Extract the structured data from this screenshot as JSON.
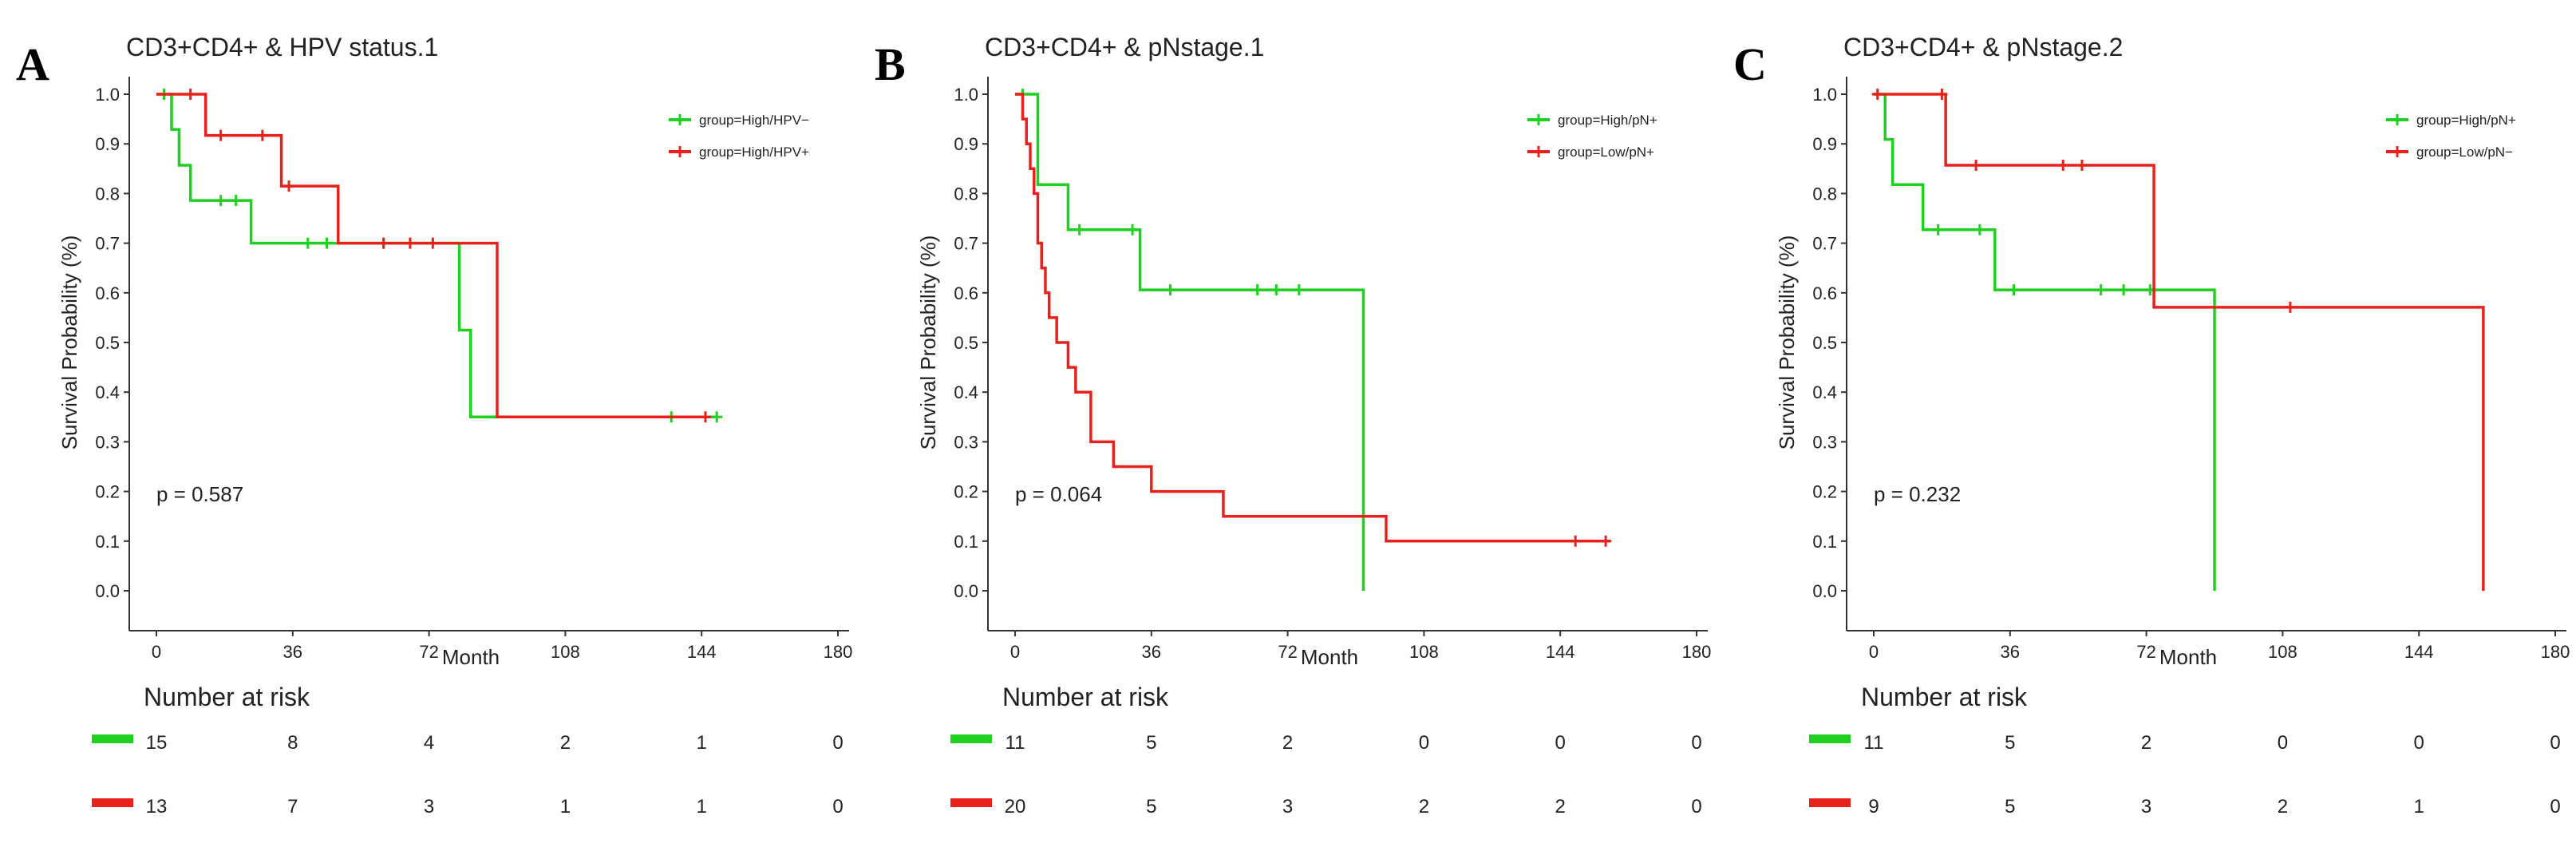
{
  "chart_data": [
    {
      "type": "line",
      "panel_letter": "A",
      "title": "CD3+CD4+ & HPV status.1",
      "xlabel": "Month",
      "ylabel": "Survival Probability (%)",
      "xlim": [
        0,
        180
      ],
      "ylim": [
        0,
        1
      ],
      "x_ticks": [
        0,
        36,
        72,
        108,
        144,
        180
      ],
      "y_ticks": [
        0.0,
        0.1,
        0.2,
        0.3,
        0.4,
        0.5,
        0.6,
        0.7,
        0.8,
        0.9,
        1.0
      ],
      "p_value_text": "p = 0.587",
      "risk_table_title": "Number at risk",
      "legend_position": "top-right",
      "series": [
        {
          "name": "group=High/HPV−",
          "color": "#1fd11f",
          "steps": [
            [
              0,
              1.0
            ],
            [
              4,
              0.929
            ],
            [
              6,
              0.857
            ],
            [
              9,
              0.786
            ],
            [
              25,
              0.7
            ],
            [
              80,
              0.525
            ],
            [
              83,
              0.35
            ],
            [
              148,
              0.35
            ]
          ],
          "censored": [
            [
              2,
              1.0
            ],
            [
              17,
              0.786
            ],
            [
              21,
              0.786
            ],
            [
              40,
              0.7
            ],
            [
              45,
              0.7
            ],
            [
              60,
              0.7
            ],
            [
              136,
              0.35
            ],
            [
              148,
              0.35
            ]
          ],
          "at_risk": [
            15,
            8,
            4,
            2,
            1,
            0
          ]
        },
        {
          "name": "group=High/HPV+",
          "color": "#e8211b",
          "steps": [
            [
              0,
              1.0
            ],
            [
              13,
              0.917
            ],
            [
              33,
              0.815
            ],
            [
              48,
              0.7
            ],
            [
              90,
              0.35
            ],
            [
              145,
              0.35
            ]
          ],
          "censored": [
            [
              9,
              1.0
            ],
            [
              17,
              0.917
            ],
            [
              28,
              0.917
            ],
            [
              35,
              0.815
            ],
            [
              60,
              0.7
            ],
            [
              67,
              0.7
            ],
            [
              73,
              0.7
            ],
            [
              145,
              0.35
            ]
          ],
          "at_risk": [
            13,
            7,
            3,
            1,
            1,
            0
          ]
        }
      ]
    },
    {
      "type": "line",
      "panel_letter": "B",
      "title": "CD3+CD4+ & pNstage.1",
      "xlabel": "Month",
      "ylabel": "Survival Probability (%)",
      "xlim": [
        0,
        180
      ],
      "ylim": [
        0,
        1
      ],
      "x_ticks": [
        0,
        36,
        72,
        108,
        144,
        180
      ],
      "y_ticks": [
        0.0,
        0.1,
        0.2,
        0.3,
        0.4,
        0.5,
        0.6,
        0.7,
        0.8,
        0.9,
        1.0
      ],
      "p_value_text": "p = 0.064",
      "risk_table_title": "Number at risk",
      "legend_position": "top-right",
      "series": [
        {
          "name": "group=High/pN+",
          "color": "#1fd11f",
          "steps": [
            [
              0,
              1.0
            ],
            [
              6,
              0.818
            ],
            [
              14,
              0.727
            ],
            [
              33,
              0.606
            ],
            [
              92,
              0.0
            ]
          ],
          "censored": [
            [
              2,
              1.0
            ],
            [
              17,
              0.727
            ],
            [
              31,
              0.727
            ],
            [
              41,
              0.606
            ],
            [
              64,
              0.606
            ],
            [
              69,
              0.606
            ],
            [
              75,
              0.606
            ]
          ],
          "at_risk": [
            11,
            5,
            2,
            0,
            0,
            0
          ]
        },
        {
          "name": "group=Low/pN+",
          "color": "#e8211b",
          "steps": [
            [
              0,
              1.0
            ],
            [
              2,
              0.95
            ],
            [
              3,
              0.9
            ],
            [
              4,
              0.85
            ],
            [
              5,
              0.8
            ],
            [
              6,
              0.7
            ],
            [
              7,
              0.65
            ],
            [
              8,
              0.6
            ],
            [
              9,
              0.55
            ],
            [
              11,
              0.5
            ],
            [
              14,
              0.45
            ],
            [
              16,
              0.4
            ],
            [
              20,
              0.3
            ],
            [
              26,
              0.25
            ],
            [
              36,
              0.2
            ],
            [
              55,
              0.15
            ],
            [
              98,
              0.1
            ],
            [
              157,
              0.1
            ]
          ],
          "censored": [
            [
              148,
              0.1
            ],
            [
              156,
              0.1
            ]
          ],
          "at_risk": [
            20,
            5,
            3,
            2,
            2,
            0
          ]
        }
      ]
    },
    {
      "type": "line",
      "panel_letter": "C",
      "title": "CD3+CD4+ & pNstage.2",
      "xlabel": "Month",
      "ylabel": "Survival Probability (%)",
      "xlim": [
        0,
        180
      ],
      "ylim": [
        0,
        1
      ],
      "x_ticks": [
        0,
        36,
        72,
        108,
        144,
        180
      ],
      "y_ticks": [
        0.0,
        0.1,
        0.2,
        0.3,
        0.4,
        0.5,
        0.6,
        0.7,
        0.8,
        0.9,
        1.0
      ],
      "p_value_text": "p = 0.232",
      "risk_table_title": "Number at risk",
      "legend_position": "top-right",
      "series": [
        {
          "name": "group=High/pN+",
          "color": "#1fd11f",
          "steps": [
            [
              0,
              1.0
            ],
            [
              3,
              0.909
            ],
            [
              5,
              0.818
            ],
            [
              13,
              0.727
            ],
            [
              32,
              0.606
            ],
            [
              90,
              0.0
            ]
          ],
          "censored": [
            [
              17,
              0.727
            ],
            [
              28,
              0.727
            ],
            [
              37,
              0.606
            ],
            [
              60,
              0.606
            ],
            [
              66,
              0.606
            ],
            [
              73,
              0.606
            ]
          ],
          "at_risk": [
            11,
            5,
            2,
            0,
            0,
            0
          ]
        },
        {
          "name": "group=Low/pN−",
          "color": "#e8211b",
          "steps": [
            [
              0,
              1.0
            ],
            [
              19,
              0.857
            ],
            [
              74,
              0.571
            ],
            [
              161,
              0.0
            ]
          ],
          "censored": [
            [
              1,
              1.0
            ],
            [
              18,
              1.0
            ],
            [
              27,
              0.857
            ],
            [
              50,
              0.857
            ],
            [
              55,
              0.857
            ],
            [
              110,
              0.571
            ]
          ],
          "at_risk": [
            9,
            5,
            3,
            2,
            1,
            0
          ]
        }
      ]
    }
  ]
}
